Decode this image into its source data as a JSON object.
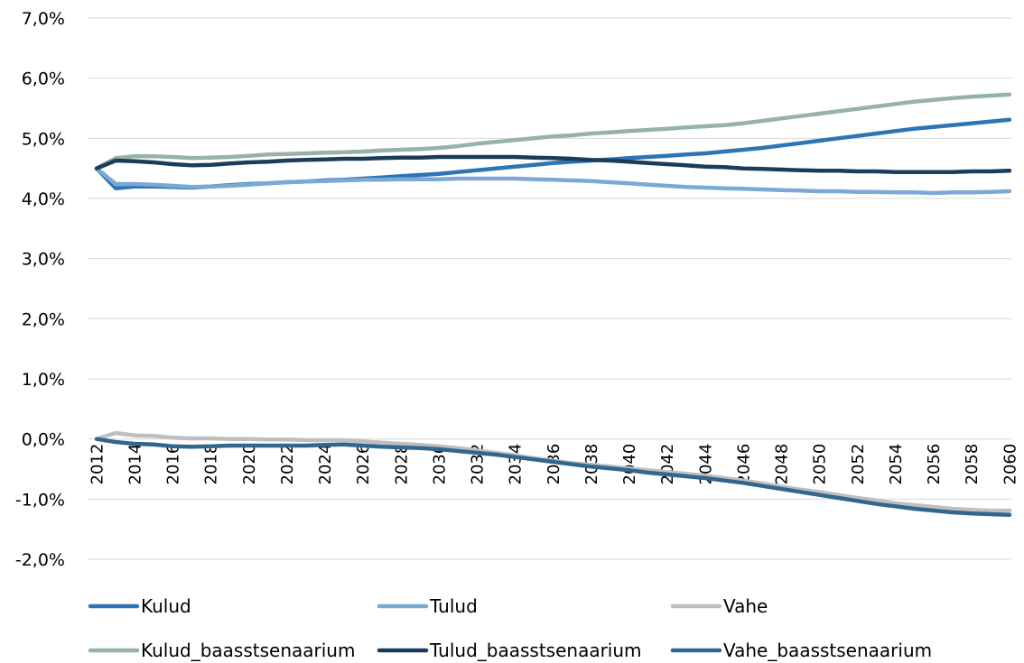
{
  "chart_data": {
    "type": "line",
    "title": "",
    "xlabel": "",
    "ylabel": "",
    "ylim": [
      -2.0,
      7.0
    ],
    "y_tick_step": 1.0,
    "y_tick_labels": [
      "-2,0%",
      "-1,0%",
      "0,0%",
      "1,0%",
      "2,0%",
      "3,0%",
      "4,0%",
      "5,0%",
      "6,0%",
      "7,0%"
    ],
    "x_tick_labels": [
      "2012",
      "2014",
      "2016",
      "2018",
      "2020",
      "2022",
      "2024",
      "2026",
      "2028",
      "2030",
      "2032",
      "2034",
      "2036",
      "2038",
      "2040",
      "2042",
      "2044",
      "2046",
      "2048",
      "2050",
      "2052",
      "2054",
      "2056",
      "2058",
      "2060"
    ],
    "grid": true,
    "legend_position": "bottom",
    "x": [
      2012,
      2013,
      2014,
      2015,
      2016,
      2017,
      2018,
      2019,
      2020,
      2021,
      2022,
      2023,
      2024,
      2025,
      2026,
      2027,
      2028,
      2029,
      2030,
      2031,
      2032,
      2033,
      2034,
      2035,
      2036,
      2037,
      2038,
      2039,
      2040,
      2041,
      2042,
      2043,
      2044,
      2045,
      2046,
      2047,
      2048,
      2049,
      2050,
      2051,
      2052,
      2053,
      2054,
      2055,
      2056,
      2057,
      2058,
      2059,
      2060
    ],
    "series": [
      {
        "name": "Kulud",
        "color": "#2e75b6",
        "values": [
          4.5,
          4.17,
          4.2,
          4.2,
          4.19,
          4.18,
          4.2,
          4.22,
          4.24,
          4.25,
          4.27,
          4.28,
          4.3,
          4.31,
          4.33,
          4.35,
          4.37,
          4.39,
          4.41,
          4.44,
          4.47,
          4.5,
          4.53,
          4.56,
          4.59,
          4.61,
          4.63,
          4.65,
          4.67,
          4.69,
          4.71,
          4.73,
          4.75,
          4.78,
          4.81,
          4.84,
          4.88,
          4.92,
          4.96,
          5.0,
          5.04,
          5.08,
          5.12,
          5.16,
          5.19,
          5.22,
          5.25,
          5.28,
          5.31
        ]
      },
      {
        "name": "Tulud",
        "color": "#7aa9d6",
        "values": [
          4.5,
          4.24,
          4.24,
          4.23,
          4.21,
          4.19,
          4.2,
          4.21,
          4.23,
          4.25,
          4.27,
          4.28,
          4.29,
          4.3,
          4.31,
          4.31,
          4.32,
          4.32,
          4.32,
          4.33,
          4.33,
          4.33,
          4.33,
          4.32,
          4.31,
          4.3,
          4.29,
          4.27,
          4.25,
          4.23,
          4.21,
          4.19,
          4.18,
          4.17,
          4.16,
          4.15,
          4.14,
          4.13,
          4.12,
          4.12,
          4.11,
          4.11,
          4.1,
          4.1,
          4.09,
          4.1,
          4.1,
          4.11,
          4.12
        ]
      },
      {
        "name": "Vahe",
        "color": "#bfbfbf",
        "values": [
          0.0,
          0.1,
          0.06,
          0.05,
          0.02,
          0.01,
          0.01,
          0.0,
          0.0,
          -0.01,
          -0.01,
          -0.02,
          -0.02,
          -0.02,
          -0.04,
          -0.06,
          -0.08,
          -0.1,
          -0.12,
          -0.15,
          -0.19,
          -0.23,
          -0.27,
          -0.32,
          -0.36,
          -0.4,
          -0.43,
          -0.46,
          -0.49,
          -0.52,
          -0.55,
          -0.58,
          -0.61,
          -0.65,
          -0.69,
          -0.74,
          -0.79,
          -0.84,
          -0.88,
          -0.93,
          -0.98,
          -1.02,
          -1.07,
          -1.1,
          -1.13,
          -1.16,
          -1.18,
          -1.19,
          -1.19
        ]
      },
      {
        "name": "Kulud_baasstsenaarium",
        "color": "#95b3aa",
        "values": [
          4.5,
          4.67,
          4.7,
          4.7,
          4.69,
          4.67,
          4.68,
          4.69,
          4.71,
          4.73,
          4.74,
          4.75,
          4.76,
          4.77,
          4.78,
          4.8,
          4.81,
          4.82,
          4.84,
          4.87,
          4.91,
          4.94,
          4.97,
          5.0,
          5.03,
          5.05,
          5.08,
          5.1,
          5.12,
          5.14,
          5.16,
          5.18,
          5.2,
          5.22,
          5.25,
          5.29,
          5.33,
          5.37,
          5.41,
          5.45,
          5.49,
          5.53,
          5.57,
          5.61,
          5.64,
          5.67,
          5.69,
          5.71,
          5.73
        ]
      },
      {
        "name": "Tulud_baasstsenaarium",
        "color": "#1c3d5a",
        "values": [
          4.5,
          4.63,
          4.62,
          4.6,
          4.57,
          4.55,
          4.56,
          4.58,
          4.6,
          4.61,
          4.63,
          4.64,
          4.65,
          4.66,
          4.66,
          4.67,
          4.68,
          4.68,
          4.69,
          4.69,
          4.69,
          4.69,
          4.69,
          4.68,
          4.67,
          4.66,
          4.64,
          4.63,
          4.61,
          4.59,
          4.57,
          4.55,
          4.53,
          4.52,
          4.5,
          4.49,
          4.48,
          4.47,
          4.46,
          4.46,
          4.45,
          4.45,
          4.44,
          4.44,
          4.44,
          4.44,
          4.45,
          4.45,
          4.46
        ]
      },
      {
        "name": "Vahe_baasstsenaarium",
        "color": "#31668f",
        "values": [
          0.0,
          -0.05,
          -0.08,
          -0.09,
          -0.12,
          -0.13,
          -0.12,
          -0.11,
          -0.11,
          -0.11,
          -0.11,
          -0.11,
          -0.1,
          -0.09,
          -0.11,
          -0.13,
          -0.14,
          -0.15,
          -0.17,
          -0.2,
          -0.23,
          -0.26,
          -0.3,
          -0.34,
          -0.38,
          -0.42,
          -0.46,
          -0.49,
          -0.52,
          -0.56,
          -0.59,
          -0.62,
          -0.65,
          -0.69,
          -0.73,
          -0.78,
          -0.83,
          -0.88,
          -0.93,
          -0.98,
          -1.03,
          -1.08,
          -1.12,
          -1.16,
          -1.19,
          -1.22,
          -1.24,
          -1.25,
          -1.26
        ]
      }
    ]
  }
}
